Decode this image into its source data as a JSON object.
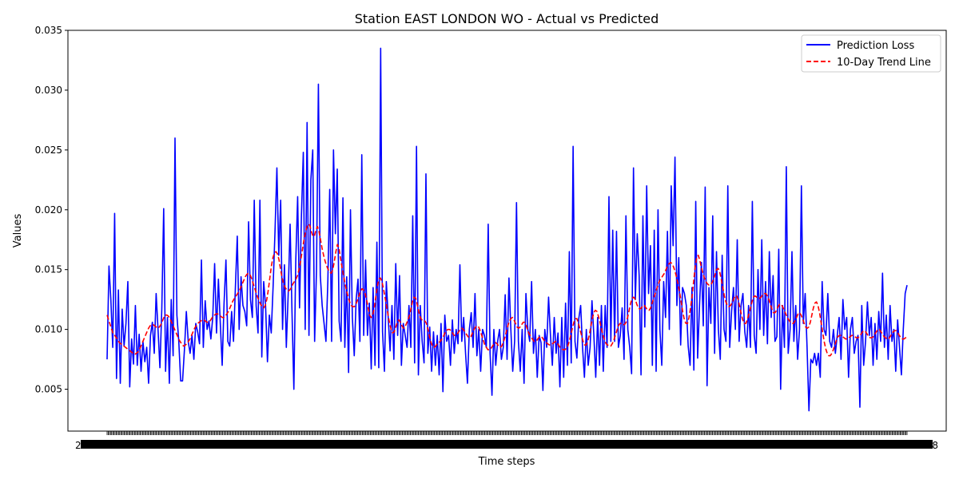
{
  "chart_data": {
    "type": "line",
    "title": "Station EAST LONDON WO - Actual vs Predicted",
    "xlabel": "Time steps",
    "ylabel": "Values",
    "ylim": [
      0.0015,
      0.035
    ],
    "yticks": [
      "0.005",
      "0.010",
      "0.015",
      "0.020",
      "0.025",
      "0.030",
      "0.035"
    ],
    "ytick_values": [
      0.005,
      0.01,
      0.015,
      0.02,
      0.025,
      0.03,
      0.035
    ],
    "x_tick_count": 700,
    "x_tick_label_left": "2",
    "x_tick_label_right": "8",
    "grid": false,
    "legend_position": "top-right",
    "series": [
      {
        "name": "Prediction Loss",
        "color": "#0000ff",
        "style": "solid",
        "values": [
          0.0075,
          0.0153,
          0.0125,
          0.0085,
          0.0197,
          0.0059,
          0.0133,
          0.0055,
          0.0117,
          0.0086,
          0.0105,
          0.014,
          0.0052,
          0.0092,
          0.0071,
          0.012,
          0.007,
          0.0096,
          0.0065,
          0.009,
          0.0073,
          0.0085,
          0.0055,
          0.0095,
          0.0106,
          0.008,
          0.013,
          0.01,
          0.0068,
          0.0117,
          0.0201,
          0.0065,
          0.011,
          0.0055,
          0.0125,
          0.0078,
          0.026,
          0.0112,
          0.009,
          0.0057,
          0.0057,
          0.0083,
          0.0115,
          0.009,
          0.008,
          0.0095,
          0.0075,
          0.0105,
          0.0098,
          0.0088,
          0.0158,
          0.0085,
          0.0124,
          0.01,
          0.0107,
          0.0092,
          0.011,
          0.0155,
          0.0097,
          0.0142,
          0.0105,
          0.007,
          0.0122,
          0.0158,
          0.009,
          0.0086,
          0.0115,
          0.009,
          0.0135,
          0.0178,
          0.01,
          0.0144,
          0.012,
          0.0115,
          0.0103,
          0.019,
          0.0125,
          0.011,
          0.0208,
          0.012,
          0.0097,
          0.0208,
          0.0077,
          0.014,
          0.012,
          0.0073,
          0.0112,
          0.0097,
          0.0136,
          0.0182,
          0.0235,
          0.0162,
          0.0208,
          0.01,
          0.0154,
          0.0085,
          0.013,
          0.0188,
          0.0115,
          0.005,
          0.0157,
          0.0211,
          0.0118,
          0.0195,
          0.0248,
          0.01,
          0.0273,
          0.0095,
          0.0225,
          0.025,
          0.009,
          0.015,
          0.0305,
          0.0145,
          0.012,
          0.0105,
          0.009,
          0.014,
          0.0217,
          0.009,
          0.025,
          0.018,
          0.0234,
          0.0107,
          0.009,
          0.021,
          0.0085,
          0.0144,
          0.0064,
          0.02,
          0.011,
          0.0078,
          0.0125,
          0.0142,
          0.009,
          0.0246,
          0.0095,
          0.0158,
          0.0095,
          0.0122,
          0.0067,
          0.0135,
          0.007,
          0.0173,
          0.0068,
          0.0335,
          0.0098,
          0.0065,
          0.014,
          0.011,
          0.0082,
          0.012,
          0.0075,
          0.0155,
          0.0095,
          0.0145,
          0.007,
          0.0105,
          0.0095,
          0.0085,
          0.012,
          0.0085,
          0.0195,
          0.0072,
          0.0253,
          0.0062,
          0.012,
          0.009,
          0.0072,
          0.023,
          0.008,
          0.0102,
          0.0065,
          0.0098,
          0.007,
          0.0095,
          0.0062,
          0.0105,
          0.0048,
          0.0112,
          0.009,
          0.0095,
          0.007,
          0.0108,
          0.008,
          0.01,
          0.0088,
          0.0154,
          0.009,
          0.011,
          0.008,
          0.0055,
          0.01,
          0.0114,
          0.0085,
          0.013,
          0.0078,
          0.01,
          0.0065,
          0.01,
          0.0095,
          0.0085,
          0.0188,
          0.008,
          0.0045,
          0.01,
          0.007,
          0.009,
          0.01,
          0.0075,
          0.0085,
          0.0129,
          0.0075,
          0.0143,
          0.01,
          0.0065,
          0.009,
          0.0206,
          0.009,
          0.0065,
          0.01,
          0.0055,
          0.013,
          0.01,
          0.009,
          0.014,
          0.008,
          0.01,
          0.006,
          0.0095,
          0.0089,
          0.0049,
          0.01,
          0.0085,
          0.0127,
          0.0095,
          0.007,
          0.011,
          0.008,
          0.0097,
          0.0052,
          0.011,
          0.006,
          0.0122,
          0.007,
          0.0165,
          0.0072,
          0.0253,
          0.009,
          0.0076,
          0.0109,
          0.012,
          0.0085,
          0.006,
          0.01,
          0.007,
          0.0085,
          0.0124,
          0.0095,
          0.006,
          0.011,
          0.007,
          0.012,
          0.0065,
          0.012,
          0.0085,
          0.0211,
          0.009,
          0.0183,
          0.009,
          0.0182,
          0.0085,
          0.0095,
          0.0118,
          0.0075,
          0.0195,
          0.01,
          0.0085,
          0.0063,
          0.0235,
          0.0125,
          0.018,
          0.0145,
          0.0062,
          0.0195,
          0.0102,
          0.022,
          0.013,
          0.017,
          0.007,
          0.0183,
          0.0065,
          0.02,
          0.01,
          0.007,
          0.014,
          0.011,
          0.0182,
          0.01,
          0.022,
          0.017,
          0.0244,
          0.012,
          0.016,
          0.0087,
          0.0135,
          0.013,
          0.012,
          0.0086,
          0.007,
          0.0135,
          0.0066,
          0.0207,
          0.0076,
          0.012,
          0.0156,
          0.0103,
          0.0219,
          0.0053,
          0.0135,
          0.0105,
          0.0195,
          0.008,
          0.0165,
          0.01,
          0.0075,
          0.0162,
          0.01,
          0.009,
          0.022,
          0.0085,
          0.0115,
          0.0135,
          0.01,
          0.0175,
          0.009,
          0.012,
          0.013,
          0.0098,
          0.0085,
          0.012,
          0.0085,
          0.0207,
          0.0095,
          0.008,
          0.015,
          0.01,
          0.0175,
          0.0095,
          0.014,
          0.0088,
          0.0165,
          0.011,
          0.0145,
          0.009,
          0.0094,
          0.0167,
          0.005,
          0.012,
          0.0085,
          0.0236,
          0.008,
          0.01,
          0.0165,
          0.009,
          0.012,
          0.0075,
          0.01,
          0.022,
          0.0105,
          0.013,
          0.0085,
          0.0032,
          0.0075,
          0.0072,
          0.008,
          0.007,
          0.008,
          0.006,
          0.014,
          0.01,
          0.0095,
          0.013,
          0.009,
          0.0085,
          0.01,
          0.008,
          0.0095,
          0.011,
          0.0075,
          0.0125,
          0.01,
          0.011,
          0.006,
          0.01,
          0.011,
          0.008,
          0.009,
          0.0095,
          0.0035,
          0.012,
          0.007,
          0.009,
          0.0123,
          0.0095,
          0.011,
          0.007,
          0.0105,
          0.0075,
          0.0115,
          0.009,
          0.0147,
          0.0085,
          0.0112,
          0.0075,
          0.012,
          0.009,
          0.01,
          0.0065,
          0.0108,
          0.0085,
          0.0062,
          0.01,
          0.013,
          0.0137
        ]
      },
      {
        "name": "10-Day Trend Line",
        "color": "#ff0000",
        "style": "dashed",
        "values": [
          0.0112,
          0.0108,
          0.0104,
          0.01,
          0.0096,
          0.0095,
          0.0093,
          0.0091,
          0.0089,
          0.0088,
          0.0087,
          0.0086,
          0.0085,
          0.0084,
          0.0083,
          0.0082,
          0.0081,
          0.008,
          0.0079,
          0.008,
          0.0081,
          0.0083,
          0.0086,
          0.0089,
          0.0092,
          0.0095,
          0.0098,
          0.0101,
          0.0103,
          0.0104,
          0.0104,
          0.0103,
          0.0102,
          0.0101,
          0.0102,
          0.0104,
          0.0107,
          0.011,
          0.0112,
          0.0112,
          0.0111,
          0.0109,
          0.0106,
          0.0103,
          0.01,
          0.0097,
          0.0094,
          0.0091,
          0.0089,
          0.0087,
          0.0086,
          0.0087,
          0.0088,
          0.009,
          0.0092,
          0.0095,
          0.0098,
          0.0101,
          0.0103,
          0.0105,
          0.0106,
          0.0107,
          0.0108,
          0.0108,
          0.0107,
          0.0106,
          0.0106,
          0.0107,
          0.0109,
          0.0111,
          0.0112,
          0.0113,
          0.0113,
          0.0112,
          0.0111,
          0.011,
          0.011,
          0.0111,
          0.0113,
          0.0115,
          0.0118,
          0.0121,
          0.0124,
          0.0126,
          0.0128,
          0.013,
          0.0132,
          0.0135,
          0.0138,
          0.0141,
          0.0144,
          0.0146,
          0.0147,
          0.0146,
          0.0143,
          0.0139,
          0.0135,
          0.0131,
          0.0127,
          0.0124,
          0.0121,
          0.0119,
          0.0118,
          0.012,
          0.0125,
          0.0133,
          0.0143,
          0.0153,
          0.016,
          0.0164,
          0.0165,
          0.0163,
          0.0158,
          0.015,
          0.0143,
          0.0138,
          0.0135,
          0.0133,
          0.0132,
          0.0133,
          0.0135,
          0.0138,
          0.014,
          0.0142,
          0.0145,
          0.015,
          0.0157,
          0.0165,
          0.0173,
          0.018,
          0.0185,
          0.0188,
          0.0187,
          0.0182,
          0.0178,
          0.0178,
          0.0183,
          0.0186,
          0.0182,
          0.0175,
          0.0168,
          0.0162,
          0.0157,
          0.0153,
          0.015,
          0.0148,
          0.0147,
          0.015,
          0.0157,
          0.0165,
          0.0171,
          0.0168,
          0.016,
          0.0152,
          0.0145,
          0.0138,
          0.0132,
          0.0127,
          0.0123,
          0.012,
          0.0119,
          0.0119,
          0.0121,
          0.0124,
          0.0128,
          0.0132,
          0.0134,
          0.0133,
          0.013,
          0.0125,
          0.0118,
          0.0112,
          0.011,
          0.0112,
          0.0118,
          0.0127,
          0.0136,
          0.0142,
          0.0143,
          0.014,
          0.0134,
          0.0127,
          0.012,
          0.0112,
          0.0105,
          0.01,
          0.0097,
          0.0098,
          0.0102,
          0.0106,
          0.0108,
          0.0106,
          0.0103,
          0.0101,
          0.0102,
          0.0105,
          0.0108,
          0.0112,
          0.0118,
          0.0124,
          0.0127,
          0.0126,
          0.0121,
          0.0115,
          0.011,
          0.0108,
          0.0107,
          0.0107,
          0.0105,
          0.01,
          0.0094,
          0.0089,
          0.0086,
          0.0085,
          0.0086,
          0.0088,
          0.0089,
          0.009,
          0.0092,
          0.0094,
          0.0097,
          0.0099,
          0.01,
          0.01,
          0.0099,
          0.0097,
          0.0095,
          0.0095,
          0.0096,
          0.0098,
          0.01,
          0.0101,
          0.01,
          0.0098,
          0.0096,
          0.0094,
          0.0093,
          0.0094,
          0.0097,
          0.01,
          0.0102,
          0.0103,
          0.0102,
          0.0099,
          0.0095,
          0.0091,
          0.0087,
          0.0085,
          0.0083,
          0.0083,
          0.0084,
          0.0086,
          0.0088,
          0.0089,
          0.0088,
          0.0086,
          0.0085,
          0.0086,
          0.0089,
          0.0093,
          0.0098,
          0.0103,
          0.0107,
          0.0109,
          0.011,
          0.0108,
          0.0105,
          0.0102,
          0.0101,
          0.0102,
          0.0104,
          0.0106,
          0.0106,
          0.0103,
          0.0099,
          0.0096,
          0.0094,
          0.0092,
          0.009,
          0.009,
          0.0091,
          0.0093,
          0.0094,
          0.0094,
          0.0092,
          0.009,
          0.0089,
          0.0088,
          0.0087,
          0.0087,
          0.0088,
          0.0089,
          0.009,
          0.0089,
          0.0087,
          0.0085,
          0.0084,
          0.0083,
          0.0083,
          0.0084,
          0.0086,
          0.009,
          0.0095,
          0.0101,
          0.0106,
          0.0109,
          0.0109,
          0.0105,
          0.01,
          0.0095,
          0.009,
          0.0087,
          0.0087,
          0.009,
          0.0095,
          0.0102,
          0.0109,
          0.0114,
          0.0116,
          0.0115,
          0.0111,
          0.0106,
          0.01,
          0.0095,
          0.0091,
          0.0088,
          0.0087,
          0.0086,
          0.0086,
          0.0088,
          0.0091,
          0.0095,
          0.0099,
          0.0103,
          0.0105,
          0.0105,
          0.0104,
          0.0104,
          0.0106,
          0.011,
          0.0116,
          0.0122,
          0.0126,
          0.0127,
          0.0125,
          0.0121,
          0.0118,
          0.0117,
          0.0118,
          0.012,
          0.012,
          0.0118,
          0.0116,
          0.0116,
          0.0118,
          0.0122,
          0.0126,
          0.013,
          0.0134,
          0.0138,
          0.0141,
          0.0143,
          0.0145,
          0.0147,
          0.015,
          0.0153,
          0.0155,
          0.0156,
          0.0155,
          0.0152,
          0.0148,
          0.0143,
          0.0137,
          0.013,
          0.0122,
          0.0114,
          0.0108,
          0.0105,
          0.0105,
          0.011,
          0.0118,
          0.0128,
          0.014,
          0.0152,
          0.016,
          0.0162,
          0.0158,
          0.0152,
          0.0147,
          0.0143,
          0.014,
          0.0138,
          0.0137,
          0.0137,
          0.0139,
          0.0142,
          0.0146,
          0.015,
          0.0151,
          0.0148,
          0.0142,
          0.0135,
          0.0128,
          0.0123,
          0.012,
          0.0119,
          0.012,
          0.0122,
          0.0125,
          0.0128,
          0.0128,
          0.0125,
          0.0119,
          0.0113,
          0.0108,
          0.0105,
          0.0105,
          0.0108,
          0.0113,
          0.0118,
          0.0123,
          0.0127,
          0.0128,
          0.0127,
          0.0126,
          0.0126,
          0.0127,
          0.0129,
          0.013,
          0.013,
          0.0128,
          0.0125,
          0.0121,
          0.0117,
          0.0114,
          0.0114,
          0.0116,
          0.0119,
          0.0121,
          0.0121,
          0.0119,
          0.0116,
          0.0113,
          0.011,
          0.0108,
          0.0106,
          0.0105,
          0.0105,
          0.0107,
          0.011,
          0.0113,
          0.0114,
          0.0112,
          0.0109,
          0.0105,
          0.0102,
          0.0101,
          0.0102,
          0.0106,
          0.0112,
          0.0118,
          0.0122,
          0.0123,
          0.012,
          0.0114,
          0.0106,
          0.0098,
          0.009,
          0.0084,
          0.008,
          0.0078,
          0.0078,
          0.008,
          0.0083,
          0.0087,
          0.0091,
          0.0094,
          0.0095,
          0.0095,
          0.0094,
          0.0093,
          0.0092,
          0.0092,
          0.0093,
          0.0094,
          0.0095,
          0.0095,
          0.0094,
          0.0093,
          0.0093,
          0.0094,
          0.0096,
          0.0098,
          0.0099,
          0.0098,
          0.0096,
          0.0094,
          0.0093,
          0.0093,
          0.0094,
          0.0096,
          0.0098,
          0.01,
          0.01,
          0.0098,
          0.0096,
          0.0094,
          0.0093,
          0.0092,
          0.0092,
          0.0094,
          0.0096,
          0.0098,
          0.0099,
          0.0099,
          0.0097,
          0.0095,
          0.0093,
          0.0092,
          0.0092,
          0.0093,
          0.0094
        ]
      }
    ]
  }
}
